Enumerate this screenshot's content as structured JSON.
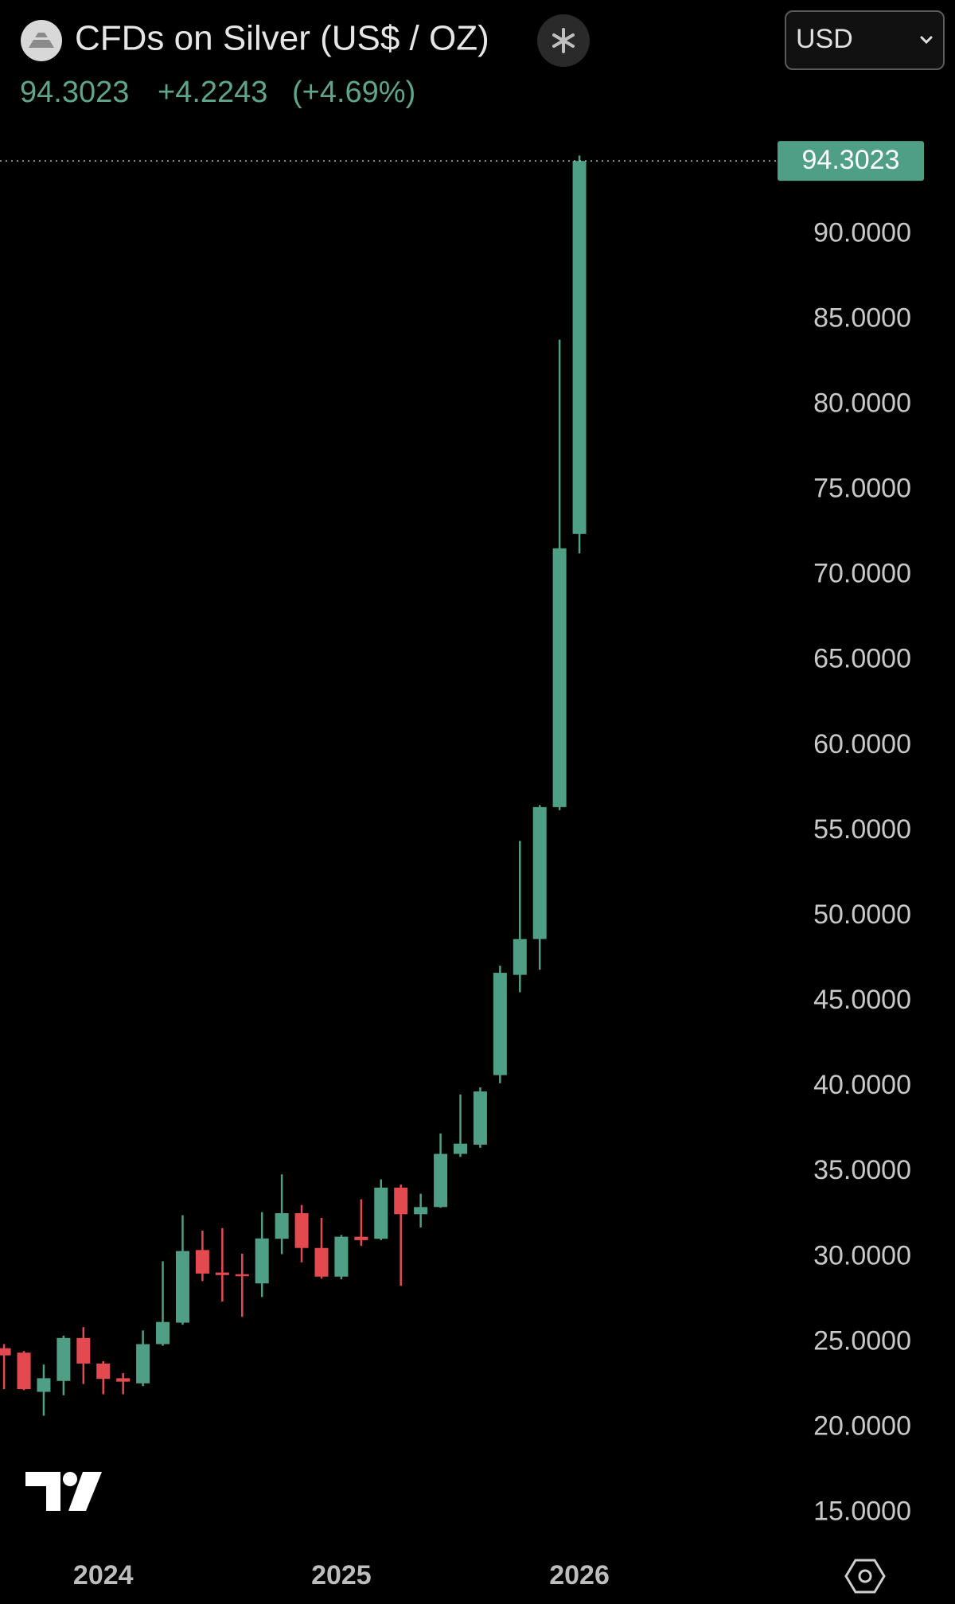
{
  "chart_data": {
    "type": "candlestick",
    "title": "CFDs on Silver (US$ / OZ)",
    "price": 94.3023,
    "change": "+4.2243",
    "change_percent": "(+4.69%)",
    "currency": "USD",
    "categories": [
      null,
      null,
      null,
      null,
      null,
      "2024",
      null,
      null,
      null,
      null,
      null,
      null,
      null,
      null,
      null,
      null,
      null,
      "2025",
      null,
      null,
      null,
      null,
      null,
      null,
      null,
      null,
      null,
      null,
      null,
      "2026"
    ],
    "open": [
      24.66,
      24.4,
      22.1,
      22.74,
      25.26,
      23.76,
      22.9,
      22.6,
      24.9,
      26.16,
      30.42,
      29.1,
      29.0,
      28.46,
      31.08,
      32.58,
      30.54,
      28.86,
      31.2,
      31.08,
      34.08,
      32.52,
      32.94,
      36.06,
      36.6,
      40.68,
      46.56,
      48.66,
      56.4,
      72.42
    ],
    "high": [
      24.9,
      24.5,
      23.7,
      25.4,
      25.9,
      23.9,
      23.2,
      25.7,
      29.76,
      32.46,
      31.56,
      31.7,
      30.2,
      32.64,
      34.86,
      33.06,
      32.3,
      31.3,
      33.4,
      34.56,
      34.26,
      33.72,
      37.26,
      39.54,
      39.96,
      47.1,
      54.42,
      56.52,
      83.82,
      94.62
    ],
    "low": [
      22.26,
      22.2,
      20.7,
      21.9,
      22.56,
      21.96,
      21.96,
      22.44,
      24.8,
      26.04,
      28.6,
      27.4,
      26.5,
      27.66,
      30.18,
      29.7,
      28.74,
      28.7,
      30.66,
      31.0,
      28.32,
      31.74,
      32.9,
      35.88,
      36.42,
      40.2,
      45.54,
      46.86,
      56.22,
      71.28
    ],
    "close": [
      24.24,
      22.26,
      22.9,
      25.26,
      23.76,
      22.86,
      22.7,
      24.9,
      26.2,
      30.36,
      29.04,
      28.95,
      28.9,
      31.1,
      32.58,
      30.54,
      28.86,
      31.2,
      31.0,
      34.08,
      32.52,
      32.94,
      36.06,
      36.66,
      39.72,
      46.68,
      48.66,
      56.4,
      71.58,
      94.3023
    ],
    "up_color": "#4f9e86",
    "down_color": "#e34a50",
    "ylim": [
      13,
      96
    ],
    "yticks": [
      {
        "value": 15,
        "label": "15.0000"
      },
      {
        "value": 20,
        "label": "20.0000"
      },
      {
        "value": 25,
        "label": "25.0000"
      },
      {
        "value": 30,
        "label": "30.0000"
      },
      {
        "value": 35,
        "label": "35.0000"
      },
      {
        "value": 40,
        "label": "40.0000"
      },
      {
        "value": 45,
        "label": "45.0000"
      },
      {
        "value": 50,
        "label": "50.0000"
      },
      {
        "value": 55,
        "label": "55.0000"
      },
      {
        "value": 60,
        "label": "60.0000"
      },
      {
        "value": 65,
        "label": "65.0000"
      },
      {
        "value": 70,
        "label": "70.0000"
      },
      {
        "value": 75,
        "label": "75.0000"
      },
      {
        "value": 80,
        "label": "80.0000"
      },
      {
        "value": 85,
        "label": "85.0000"
      },
      {
        "value": 90,
        "label": "90.0000"
      }
    ],
    "grid": false
  }
}
